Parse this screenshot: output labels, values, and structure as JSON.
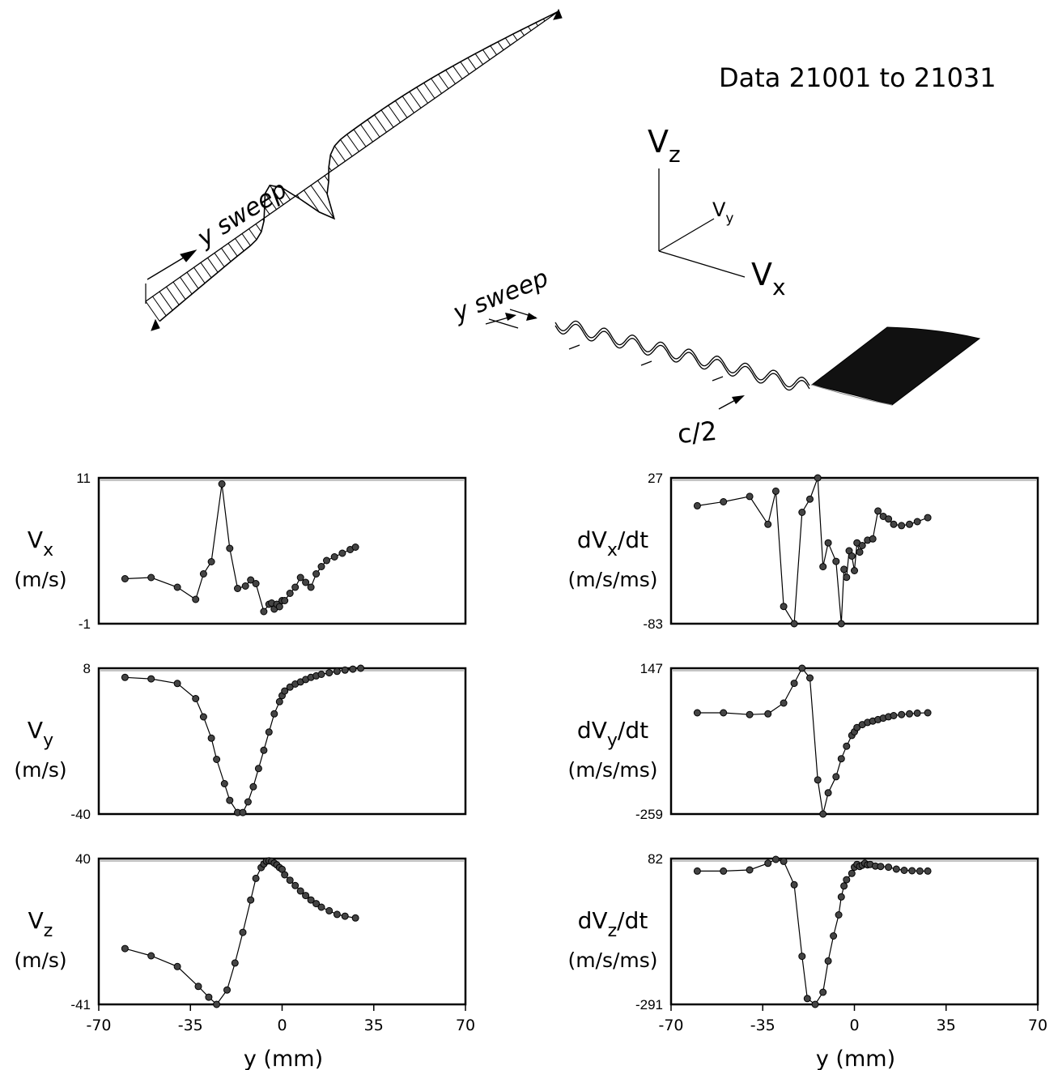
{
  "header": {
    "title": "Data 21001 to 21031"
  },
  "diagram": {
    "axes": {
      "z": "V",
      "z_sub": "z",
      "y": "V",
      "y_sub": "y",
      "x": "V",
      "x_sub": "x"
    },
    "sweep_label_1": "y sweep",
    "sweep_label_2": "y sweep",
    "chord_label": "c/2"
  },
  "chart_data": [
    {
      "type": "line",
      "panel": "vx",
      "ylabel_main": "V",
      "ylabel_sub": "x",
      "ylabel_suffix": "",
      "ylabel_unit": "(m/s)",
      "ylim": [
        -1,
        11
      ],
      "ytick_top": "11",
      "ytick_bottom": "-1",
      "xlim": [
        -70,
        70
      ],
      "x": [
        -60,
        -50,
        -40,
        -33,
        -30,
        -27,
        -23,
        -20,
        -17,
        -14,
        -12,
        -10,
        -7,
        -5,
        -4,
        -3,
        -2,
        -1,
        0,
        1,
        3,
        5,
        7,
        9,
        11,
        13,
        15,
        17,
        20,
        23,
        26,
        28
      ],
      "y": [
        2.7,
        2.8,
        2.0,
        1.0,
        3.1,
        4.1,
        10.5,
        5.2,
        1.9,
        2.1,
        2.6,
        2.3,
        0.0,
        0.6,
        0.7,
        0.2,
        0.6,
        0.4,
        0.9,
        0.9,
        1.5,
        2.0,
        2.8,
        2.4,
        2.0,
        3.1,
        3.7,
        4.2,
        4.5,
        4.8,
        5.1,
        5.3
      ]
    },
    {
      "type": "line",
      "panel": "vy",
      "ylabel_main": "V",
      "ylabel_sub": "y",
      "ylabel_suffix": "",
      "ylabel_unit": "(m/s)",
      "ylim": [
        -40,
        8
      ],
      "ytick_top": "8",
      "ytick_bottom": "-40",
      "xlim": [
        -70,
        70
      ],
      "x": [
        -60,
        -50,
        -40,
        -33,
        -30,
        -27,
        -25,
        -22,
        -20,
        -17,
        -15,
        -13,
        -11,
        -9,
        -7,
        -5,
        -3,
        -1,
        0,
        1,
        3,
        5,
        7,
        9,
        11,
        13,
        15,
        18,
        21,
        24,
        27,
        30
      ],
      "y": [
        5.0,
        4.5,
        3.0,
        -2.0,
        -8.0,
        -15.0,
        -22.0,
        -30.0,
        -35.5,
        -39.5,
        -39.5,
        -36.0,
        -31.0,
        -25.0,
        -19.0,
        -13.0,
        -7.0,
        -3.0,
        -1.0,
        0.5,
        1.8,
        2.8,
        3.5,
        4.3,
        5.0,
        5.5,
        6.0,
        6.5,
        7.0,
        7.4,
        7.7,
        8.0
      ]
    },
    {
      "type": "line",
      "panel": "vz",
      "ylabel_main": "V",
      "ylabel_sub": "z",
      "ylabel_suffix": "",
      "ylabel_unit": "(m/s)",
      "ylim": [
        -41,
        40
      ],
      "ytick_top": "40",
      "ytick_bottom": "-41",
      "xlim": [
        -70,
        70
      ],
      "x": [
        -60,
        -50,
        -40,
        -32,
        -28,
        -25,
        -21,
        -18,
        -15,
        -12,
        -10,
        -8,
        -7,
        -6,
        -5,
        -4,
        -3,
        -2,
        -1,
        0,
        1,
        3,
        5,
        7,
        9,
        11,
        13,
        15,
        18,
        21,
        24,
        28
      ],
      "y": [
        -10.0,
        -14.0,
        -20.0,
        -31.0,
        -37.0,
        -41.0,
        -33.0,
        -18.0,
        -1.0,
        17.0,
        29.0,
        35.0,
        37.0,
        38.5,
        38.8,
        38.5,
        37.5,
        36.5,
        35.0,
        34.0,
        31.0,
        28.0,
        25.0,
        22.0,
        19.5,
        17.0,
        15.0,
        13.0,
        11.0,
        9.0,
        8.0,
        7.0
      ]
    },
    {
      "type": "line",
      "panel": "dvx",
      "ylabel_main": "dV",
      "ylabel_sub": "x",
      "ylabel_suffix": "/dt",
      "ylabel_unit": "(m/s/ms)",
      "ylim": [
        -83,
        27
      ],
      "ytick_top": "27",
      "ytick_bottom": "-83",
      "xlim": [
        -70,
        70
      ],
      "x": [
        -60,
        -50,
        -40,
        -33,
        -30,
        -27,
        -23,
        -20,
        -17,
        -14,
        -12,
        -10,
        -7,
        -5,
        -4,
        -3,
        -2,
        -1,
        0,
        1,
        2,
        3,
        5,
        7,
        9,
        11,
        13,
        15,
        18,
        21,
        24,
        28
      ],
      "y": [
        6.0,
        9.0,
        13.0,
        -8.0,
        17.0,
        -70.0,
        -83.0,
        1.0,
        11.0,
        27.0,
        -40.0,
        -22.0,
        -36.0,
        -83.0,
        -42.0,
        -48.0,
        -28.0,
        -32.0,
        -43.0,
        -22.0,
        -29.0,
        -24.0,
        -20.0,
        -19.0,
        2.0,
        -2.0,
        -4.0,
        -8.0,
        -9.0,
        -8.0,
        -6.0,
        -3.0
      ]
    },
    {
      "type": "line",
      "panel": "dvy",
      "ylabel_main": "dV",
      "ylabel_sub": "y",
      "ylabel_suffix": "/dt",
      "ylabel_unit": "(m/s/ms)",
      "ylim": [
        -259,
        147
      ],
      "ytick_top": "147",
      "ytick_bottom": "-259",
      "xlim": [
        -70,
        70
      ],
      "x": [
        -60,
        -50,
        -40,
        -33,
        -27,
        -23,
        -20,
        -17,
        -14,
        -12,
        -10,
        -7,
        -5,
        -3,
        -1,
        0,
        1,
        3,
        5,
        7,
        9,
        11,
        13,
        15,
        18,
        21,
        24,
        28
      ],
      "y": [
        23.0,
        23.0,
        18.0,
        20.0,
        50.0,
        105.0,
        147.0,
        120.0,
        -164.0,
        -259.0,
        -200.0,
        -155.0,
        -105.0,
        -70.0,
        -40.0,
        -30.0,
        -18.0,
        -10.0,
        -4.0,
        0.0,
        4.0,
        8.0,
        12.0,
        15.0,
        18.0,
        20.0,
        22.0,
        23.0
      ]
    },
    {
      "type": "line",
      "panel": "dvz",
      "ylabel_main": "dV",
      "ylabel_sub": "z",
      "ylabel_suffix": "/dt",
      "ylabel_unit": "(m/s/ms)",
      "ylim": [
        -291,
        82
      ],
      "ytick_top": "82",
      "ytick_bottom": "-291",
      "xlim": [
        -70,
        70
      ],
      "x": [
        -60,
        -50,
        -40,
        -33,
        -30,
        -27,
        -23,
        -20,
        -18,
        -15,
        -12,
        -10,
        -8,
        -6,
        -5,
        -4,
        -3,
        -1,
        0,
        1,
        2,
        3,
        4,
        5,
        6,
        8,
        10,
        13,
        16,
        19,
        22,
        25,
        28
      ],
      "y": [
        50.0,
        50.0,
        53.0,
        70.0,
        80.0,
        75.0,
        15.0,
        -168.0,
        -276.0,
        -291.0,
        -260.0,
        -180.0,
        -116.0,
        -62.0,
        -16.0,
        12.0,
        28.0,
        44.0,
        60.0,
        67.0,
        62.0,
        65.0,
        70.0,
        66.0,
        67.0,
        63.0,
        62.0,
        60.0,
        55.0,
        52.0,
        51.0,
        50.0,
        50.0
      ]
    }
  ],
  "x_axis": {
    "label": "y (mm)",
    "ticks": [
      "-70",
      "-35",
      "0",
      "35",
      "70"
    ],
    "tick_values": [
      -70,
      -35,
      0,
      35,
      70
    ]
  }
}
